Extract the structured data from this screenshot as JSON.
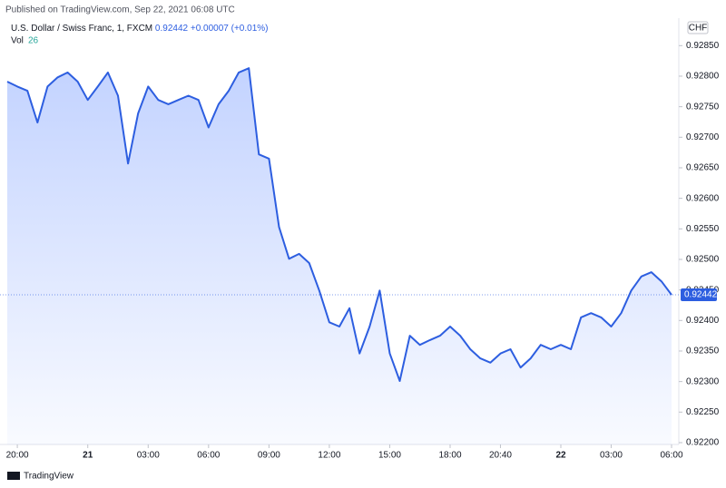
{
  "chart_data": {
    "type": "line",
    "title": "Published on TradingView.com, Sep 22, 2021 06:08 UTC",
    "last": 0.92442,
    "change": {
      "value": 7e-05,
      "label": "+0.00007"
    },
    "change_pct": {
      "value": 0.01,
      "label": "(+0.01%)"
    },
    "volume_label": "Vol",
    "volume": 26,
    "currency": "CHF",
    "brand": "TradingView",
    "categories": [
      null,
      "20:00",
      null,
      null,
      null,
      null,
      null,
      null,
      "21",
      null,
      null,
      null,
      null,
      null,
      "03:00",
      null,
      null,
      null,
      null,
      null,
      "06:00",
      null,
      null,
      null,
      null,
      null,
      "09:00",
      null,
      null,
      null,
      null,
      null,
      "12:00",
      null,
      null,
      null,
      null,
      null,
      "15:00",
      null,
      null,
      null,
      null,
      null,
      "18:00",
      null,
      null,
      null,
      null,
      "20:40",
      null,
      null,
      null,
      null,
      null,
      "22",
      null,
      null,
      null,
      null,
      "03:00",
      null,
      null,
      null,
      null,
      null,
      "06:00"
    ],
    "series": [
      {
        "name": "U.S. Dollar / Swiss Franc, 1, FXCM",
        "color": "#2d5ee0",
        "values": [
          0.92791,
          0.92783,
          0.92776,
          0.92724,
          0.92783,
          0.92798,
          0.92806,
          0.92791,
          0.92761,
          0.92783,
          0.92806,
          0.92768,
          0.92657,
          0.92739,
          0.92783,
          0.92761,
          0.92754,
          0.92761,
          0.92768,
          0.92761,
          0.92716,
          0.92754,
          0.92776,
          0.92806,
          0.92813,
          0.92672,
          0.92665,
          0.92553,
          0.92501,
          0.92509,
          0.92494,
          0.92449,
          0.92397,
          0.9239,
          0.9242,
          0.92346,
          0.9239,
          0.92449,
          0.92346,
          0.92301,
          0.92375,
          0.9236,
          0.92368,
          0.92375,
          0.9239,
          0.92375,
          0.92353,
          0.92338,
          0.92331,
          0.92346,
          0.92353,
          0.92323,
          0.92338,
          0.9236,
          0.92353,
          0.9236,
          0.92353,
          0.92405,
          0.92412,
          0.92405,
          0.9239,
          0.92412,
          0.92449,
          0.92472,
          0.92479,
          0.92464,
          0.92442
        ]
      }
    ],
    "ylim": [
      0.92197,
      0.92895
    ],
    "yticks": [
      {
        "value": 0.9285,
        "label": "0.92850"
      },
      {
        "value": 0.928,
        "label": "0.92800"
      },
      {
        "value": 0.9275,
        "label": "0.92750"
      },
      {
        "value": 0.927,
        "label": "0.92700"
      },
      {
        "value": 0.9265,
        "label": "0.92650"
      },
      {
        "value": 0.926,
        "label": "0.92600"
      },
      {
        "value": 0.9255,
        "label": "0.92550"
      },
      {
        "value": 0.925,
        "label": "0.92500"
      },
      {
        "value": 0.9245,
        "label": "0.92450"
      },
      {
        "value": 0.924,
        "label": "0.92400"
      },
      {
        "value": 0.9235,
        "label": "0.92350"
      },
      {
        "value": 0.923,
        "label": "0.92300"
      },
      {
        "value": 0.9225,
        "label": "0.92250"
      },
      {
        "value": 0.922,
        "label": "0.92200"
      }
    ]
  }
}
